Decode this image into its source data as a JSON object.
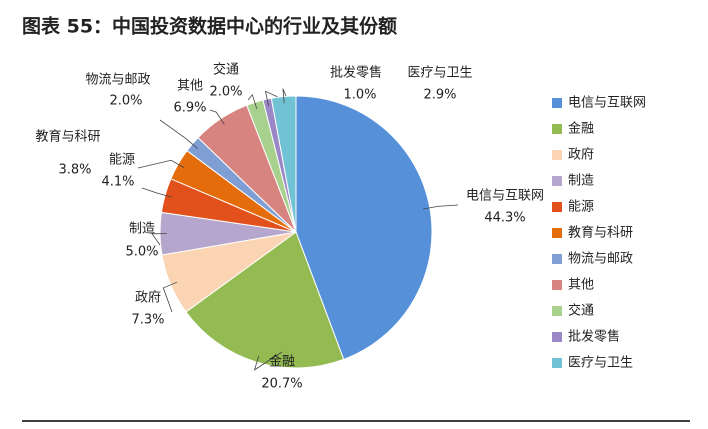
{
  "chart_data": {
    "type": "pie",
    "title": "图表 55：中国投资数据中心的行业及其份额",
    "categories": [
      "电信与互联网",
      "金融",
      "政府",
      "制造",
      "能源",
      "教育与科研",
      "物流与邮政",
      "其他",
      "交通",
      "批发零售",
      "医疗与卫生"
    ],
    "values": [
      44.3,
      20.7,
      7.3,
      5.0,
      4.1,
      3.8,
      2.0,
      6.9,
      2.0,
      1.0,
      2.9
    ],
    "value_labels": [
      "44.3%",
      "20.7%",
      "7.3%",
      "5.0%",
      "4.1%",
      "3.8%",
      "2.0%",
      "6.9%",
      "2.0%",
      "1.0%",
      "2.9%"
    ],
    "colors": [
      "#5590d9",
      "#93bb52",
      "#fbd4b4",
      "#b4a6cd",
      "#e2501c",
      "#e46c0a",
      "#7f9fd4",
      "#d7837f",
      "#a9d18e",
      "#9a88c6",
      "#72c2d6"
    ],
    "legend": "right"
  }
}
